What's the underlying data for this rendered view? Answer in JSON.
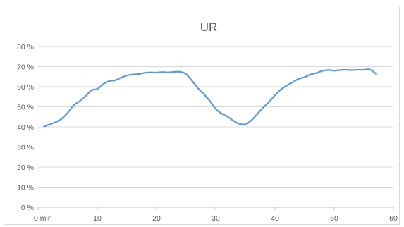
{
  "chart_data": {
    "type": "line",
    "title": "UR",
    "xlabel": "",
    "ylabel": "",
    "xlim": [
      0,
      60
    ],
    "ylim": [
      0,
      80
    ],
    "x_ticks": [
      0,
      10,
      20,
      30,
      40,
      50,
      60
    ],
    "x_tick_labels": [
      "0 min",
      "10",
      "20",
      "30",
      "40",
      "50",
      "60"
    ],
    "y_ticks": [
      0,
      10,
      20,
      30,
      40,
      50,
      60,
      70,
      80
    ],
    "y_tick_labels": [
      "0 %",
      "10 %",
      "20 %",
      "30 %",
      "40 %",
      "50 %",
      "60 %",
      "70 %",
      "80 %"
    ],
    "grid": "horizontal",
    "legend": "none",
    "series": [
      {
        "color": "#5b9bd5",
        "x": [
          1,
          2,
          3,
          4,
          5,
          6,
          7,
          8,
          9,
          10,
          11,
          12,
          13,
          14,
          15,
          16,
          17,
          18,
          19,
          20,
          21,
          22,
          23,
          24,
          25,
          26,
          27,
          28,
          29,
          30,
          31,
          32,
          33,
          34,
          35,
          36,
          37,
          38,
          39,
          40,
          41,
          42,
          43,
          44,
          45,
          46,
          47,
          48,
          49,
          50,
          51,
          52,
          53,
          54,
          55,
          56,
          57
        ],
        "y": [
          40.2,
          41.3,
          42.4,
          44.1,
          47.0,
          50.7,
          52.8,
          55.2,
          58.2,
          58.9,
          61.3,
          62.8,
          63.2,
          64.5,
          65.6,
          66.1,
          66.3,
          66.9,
          67.1,
          67.0,
          67.3,
          67.1,
          67.4,
          67.4,
          66.2,
          62.9,
          59.2,
          56.3,
          52.9,
          48.9,
          46.6,
          45.1,
          43.0,
          41.5,
          41.3,
          43.2,
          46.4,
          49.6,
          52.4,
          55.7,
          58.6,
          60.6,
          62.2,
          63.9,
          64.7,
          66.1,
          66.8,
          67.9,
          68.3,
          68.0,
          68.3,
          68.4,
          68.3,
          68.4,
          68.4,
          68.6,
          66.5
        ]
      }
    ]
  }
}
